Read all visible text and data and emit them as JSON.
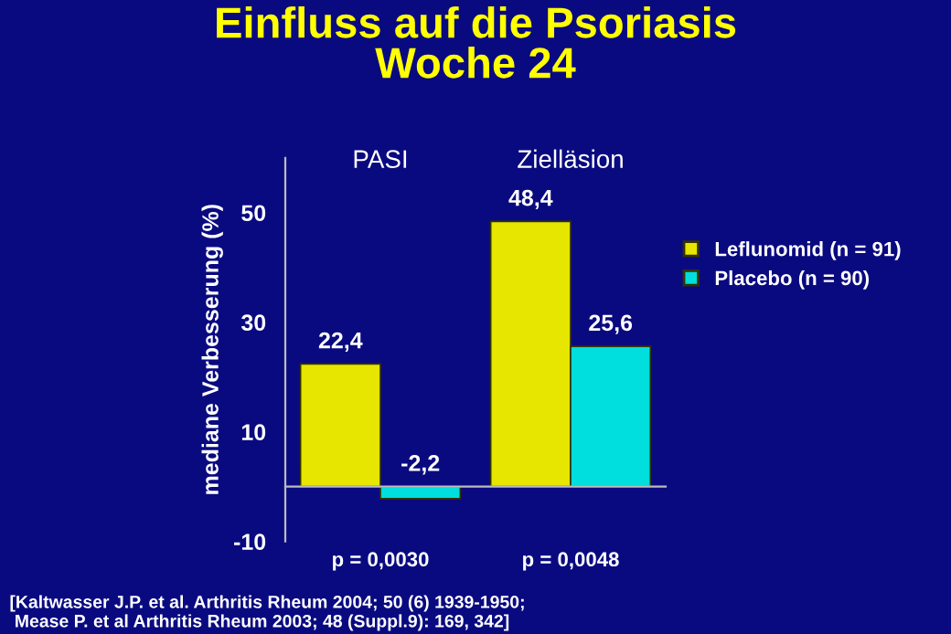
{
  "chart_data": {
    "type": "bar",
    "title": "Einfluss auf die Psoriasis\nWoche 24",
    "ylabel": "mediane Verbesserung (%)",
    "categories": [
      "PASI",
      "Zielläsion"
    ],
    "series": [
      {
        "name": "Leflunomid (n = 91)",
        "color": "#e6e600",
        "values": [
          22.4,
          48.4
        ],
        "value_labels": [
          "22,4",
          "48,4"
        ]
      },
      {
        "name": "Placebo (n = 90)",
        "color": "#00dede",
        "values": [
          -2.2,
          25.6
        ],
        "value_labels": [
          "-2,2",
          "25,6"
        ]
      }
    ],
    "ylim": [
      -10,
      60
    ],
    "yticks": [
      -10,
      10,
      30,
      50
    ],
    "grid": false,
    "legend": "right",
    "annotations": [
      "p = 0,0030",
      "p = 0,0048",
      "[Kaltwasser J.P. et al. Arthritis Rheum 2004; 50 (6) 1939-1950;\n Mease P. et al Arthritis Rheum 2003; 48 (Suppl.9): 169, 342]"
    ]
  }
}
